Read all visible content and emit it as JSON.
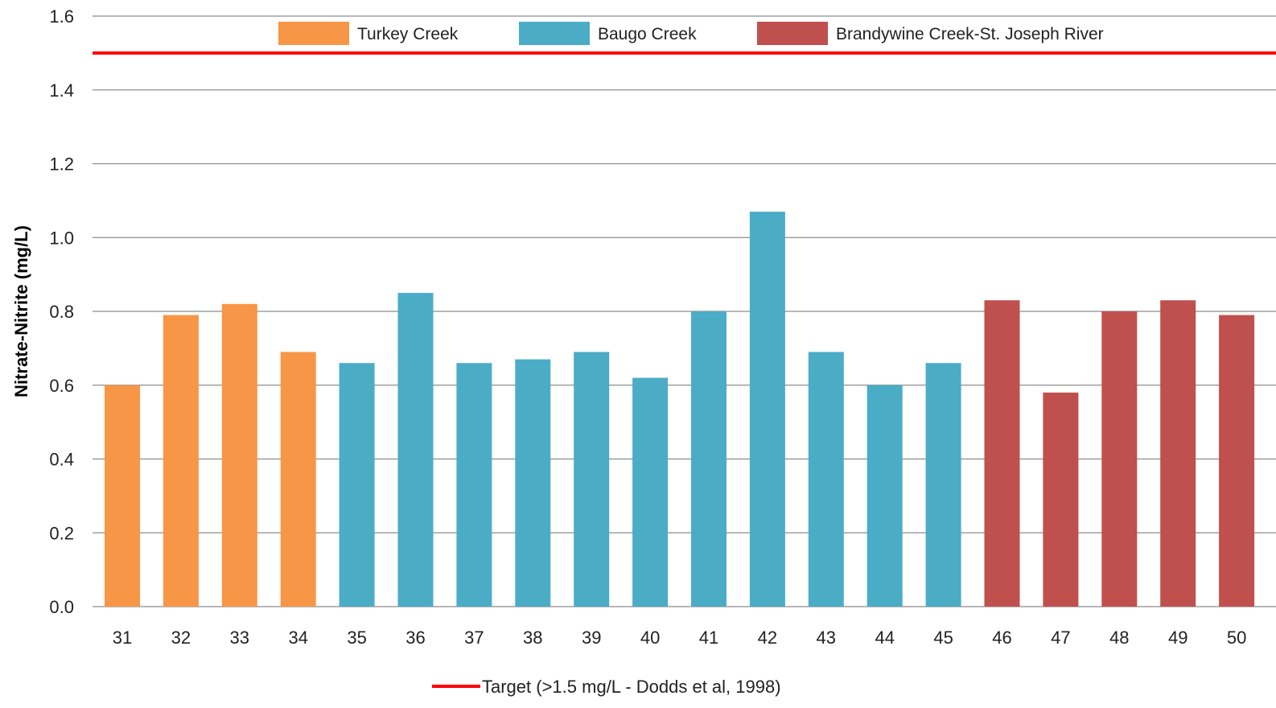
{
  "chart_data": {
    "type": "bar",
    "title": "",
    "xlabel": "",
    "ylabel": "Nitrate-Nitrite (mg/L)",
    "ylim": [
      0,
      1.6
    ],
    "y_ticks": [
      "0.0",
      "0.2",
      "0.4",
      "0.6",
      "0.8",
      "1.0",
      "1.2",
      "1.4",
      "1.6"
    ],
    "grid": true,
    "legend_position": "top",
    "categories": [
      "31",
      "32",
      "33",
      "34",
      "35",
      "36",
      "37",
      "38",
      "39",
      "40",
      "41",
      "42",
      "43",
      "44",
      "45",
      "46",
      "47",
      "48",
      "49",
      "50"
    ],
    "values": [
      0.6,
      0.79,
      0.82,
      0.69,
      0.66,
      0.85,
      0.66,
      0.67,
      0.69,
      0.62,
      0.8,
      1.07,
      0.69,
      0.6,
      0.66,
      0.83,
      0.58,
      0.8,
      0.83,
      0.79
    ],
    "groups": [
      {
        "name": "Turkey Creek",
        "color": "#F79646",
        "categories": [
          "31",
          "32",
          "33",
          "34"
        ]
      },
      {
        "name": "Baugo Creek",
        "color": "#4BACC6",
        "categories": [
          "35",
          "36",
          "37",
          "38",
          "39",
          "40",
          "41",
          "42",
          "43",
          "44",
          "45"
        ]
      },
      {
        "name": "Brandywine Creek-St. Joseph River",
        "color": "#C0504D",
        "categories": [
          "46",
          "47",
          "48",
          "49",
          "50"
        ]
      }
    ],
    "target_line": {
      "value": 1.5,
      "label": "Target (>1.5 mg/L - Dodds et al, 1998)",
      "color": "#FF0000"
    }
  }
}
